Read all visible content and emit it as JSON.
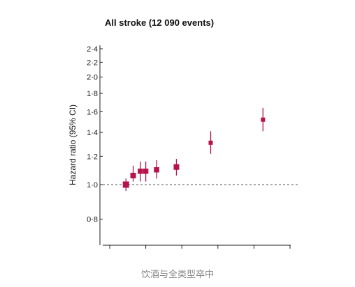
{
  "chart_data": {
    "type": "scatter",
    "title": "All stroke (12 090 events)",
    "ylabel": "Hazard ratio (95% CI)",
    "xlabel": "",
    "y_scale": "log",
    "ylim": [
      0.7,
      2.5
    ],
    "xlim": [
      0,
      10
    ],
    "y_ticks": [
      0.8,
      1.0,
      1.2,
      1.4,
      1.6,
      1.8,
      2.0,
      2.2,
      2.4
    ],
    "y_tick_labels": [
      "0·8",
      "1·0",
      "1·2",
      "1·4",
      "1·6",
      "1·8",
      "2·0",
      "2·2",
      "2·4"
    ],
    "x_ticks": [
      0,
      2,
      4,
      6,
      8,
      10
    ],
    "reference_line": 1.0,
    "grid": false,
    "marker_color": "#b5134b",
    "points": [
      {
        "x": 0.9,
        "y": 1.0,
        "lo": 0.96,
        "hi": 1.04,
        "size": 9
      },
      {
        "x": 1.3,
        "y": 1.06,
        "lo": 1.02,
        "hi": 1.13,
        "size": 8
      },
      {
        "x": 1.7,
        "y": 1.09,
        "lo": 1.02,
        "hi": 1.16,
        "size": 7.5
      },
      {
        "x": 2.0,
        "y": 1.09,
        "lo": 1.02,
        "hi": 1.16,
        "size": 7.5
      },
      {
        "x": 2.6,
        "y": 1.1,
        "lo": 1.04,
        "hi": 1.17,
        "size": 7.5
      },
      {
        "x": 3.7,
        "y": 1.12,
        "lo": 1.06,
        "hi": 1.18,
        "size": 8
      },
      {
        "x": 5.6,
        "y": 1.31,
        "lo": 1.22,
        "hi": 1.41,
        "size": 6
      },
      {
        "x": 8.5,
        "y": 1.52,
        "lo": 1.41,
        "hi": 1.64,
        "size": 6
      }
    ]
  },
  "caption": "饮酒与全类型卒中"
}
